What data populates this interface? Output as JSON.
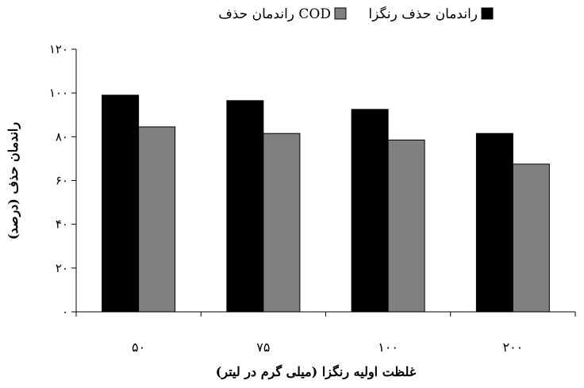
{
  "chart_data": {
    "type": "bar",
    "categories": [
      "۵۰",
      "۷۵",
      "۱۰۰",
      "۲۰۰"
    ],
    "series": [
      {
        "name": "راندمان حذف رنگزا",
        "values": [
          99,
          96.5,
          92.5,
          81.5
        ],
        "color": "#000000"
      },
      {
        "name": "راندمان حذف COD",
        "values": [
          84.5,
          81.5,
          78.5,
          67.5
        ],
        "color": "#808080"
      }
    ],
    "ylim": [
      0,
      120
    ],
    "yticks": [
      0,
      20,
      40,
      60,
      80,
      100,
      120
    ],
    "ytick_labels": [
      "۰",
      "۲۰",
      "۴۰",
      "۶۰",
      "۸۰",
      "۱۰۰",
      "۱۲۰"
    ],
    "xlabel": "غلظت اولیه رنگزا (میلی گرم در لیتر)",
    "ylabel": "راندمان حذف (درصد)",
    "legend_position": "top",
    "grid": false
  }
}
